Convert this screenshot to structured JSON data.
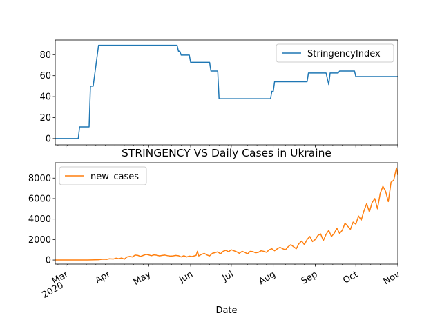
{
  "chart_data": [
    {
      "type": "line",
      "title": "",
      "xlabel": "",
      "ylabel": "",
      "ylim": [
        -6,
        94
      ],
      "xlim": [
        "2020-02-22",
        "2020-11-01"
      ],
      "yticks": [
        0,
        20,
        40,
        60,
        80
      ],
      "grid": false,
      "legend_position": "top-right",
      "series": [
        {
          "name": "StringencyIndex",
          "color": "#1f77b4",
          "points": [
            [
              "2020-02-22",
              0
            ],
            [
              "2020-03-10",
              0
            ],
            [
              "2020-03-11",
              11.1
            ],
            [
              "2020-03-18",
              11.1
            ],
            [
              "2020-03-19",
              50
            ],
            [
              "2020-03-21",
              50
            ],
            [
              "2020-03-25",
              89
            ],
            [
              "2020-05-22",
              89
            ],
            [
              "2020-05-23",
              83.3
            ],
            [
              "2020-05-24",
              83.3
            ],
            [
              "2020-05-25",
              79.6
            ],
            [
              "2020-05-31",
              79.6
            ],
            [
              "2020-06-01",
              72.7
            ],
            [
              "2020-06-15",
              72.7
            ],
            [
              "2020-06-16",
              64.4
            ],
            [
              "2020-06-21",
              64.4
            ],
            [
              "2020-06-22",
              38
            ],
            [
              "2020-07-30",
              38
            ],
            [
              "2020-07-31",
              45
            ],
            [
              "2020-08-01",
              45
            ],
            [
              "2020-08-02",
              54.2
            ],
            [
              "2020-08-26",
              54.2
            ],
            [
              "2020-08-27",
              62.5
            ],
            [
              "2020-09-09",
              62.5
            ],
            [
              "2020-09-11",
              51.5
            ],
            [
              "2020-09-12",
              62.5
            ],
            [
              "2020-09-18",
              62.5
            ],
            [
              "2020-09-19",
              64.4
            ],
            [
              "2020-09-30",
              64.4
            ],
            [
              "2020-10-01",
              59.1
            ],
            [
              "2020-11-01",
              59.1
            ]
          ]
        }
      ]
    },
    {
      "type": "line",
      "title": "STRINGENCY VS Daily Cases in Ukraine",
      "xlabel": "Date",
      "ylabel": "",
      "ylim": [
        -400,
        9500
      ],
      "xlim": [
        "2020-02-22",
        "2020-11-01"
      ],
      "yticks": [
        0,
        2000,
        4000,
        6000,
        8000
      ],
      "xticks": [
        {
          "date": "2020-03-01",
          "label": "Mar",
          "sublabel": "2020"
        },
        {
          "date": "2020-04-01",
          "label": "Apr"
        },
        {
          "date": "2020-05-01",
          "label": "May"
        },
        {
          "date": "2020-06-01",
          "label": "Jun"
        },
        {
          "date": "2020-07-01",
          "label": "Jul"
        },
        {
          "date": "2020-08-01",
          "label": "Aug"
        },
        {
          "date": "2020-09-01",
          "label": "Sep"
        },
        {
          "date": "2020-10-01",
          "label": "Oct"
        },
        {
          "date": "2020-11-01",
          "label": "Nov"
        }
      ],
      "grid": false,
      "legend_position": "top-left",
      "series": [
        {
          "name": "new_cases",
          "color": "#ff7f0e",
          "points": [
            [
              "2020-02-22",
              0
            ],
            [
              "2020-03-15",
              0
            ],
            [
              "2020-03-25",
              30
            ],
            [
              "2020-03-28",
              80
            ],
            [
              "2020-03-31",
              60
            ],
            [
              "2020-04-02",
              120
            ],
            [
              "2020-04-05",
              100
            ],
            [
              "2020-04-07",
              180
            ],
            [
              "2020-04-09",
              120
            ],
            [
              "2020-04-11",
              200
            ],
            [
              "2020-04-13",
              80
            ],
            [
              "2020-04-15",
              300
            ],
            [
              "2020-04-17",
              350
            ],
            [
              "2020-04-19",
              300
            ],
            [
              "2020-04-21",
              480
            ],
            [
              "2020-04-23",
              450
            ],
            [
              "2020-04-25",
              350
            ],
            [
              "2020-04-27",
              450
            ],
            [
              "2020-04-29",
              550
            ],
            [
              "2020-05-01",
              500
            ],
            [
              "2020-05-03",
              420
            ],
            [
              "2020-05-05",
              500
            ],
            [
              "2020-05-07",
              470
            ],
            [
              "2020-05-09",
              400
            ],
            [
              "2020-05-11",
              450
            ],
            [
              "2020-05-13",
              480
            ],
            [
              "2020-05-15",
              420
            ],
            [
              "2020-05-17",
              380
            ],
            [
              "2020-05-19",
              400
            ],
            [
              "2020-05-21",
              450
            ],
            [
              "2020-05-23",
              420
            ],
            [
              "2020-05-25",
              300
            ],
            [
              "2020-05-27",
              420
            ],
            [
              "2020-05-29",
              300
            ],
            [
              "2020-05-31",
              380
            ],
            [
              "2020-06-02",
              340
            ],
            [
              "2020-06-05",
              450
            ],
            [
              "2020-06-06",
              850
            ],
            [
              "2020-06-07",
              400
            ],
            [
              "2020-06-09",
              550
            ],
            [
              "2020-06-11",
              650
            ],
            [
              "2020-06-13",
              500
            ],
            [
              "2020-06-15",
              400
            ],
            [
              "2020-06-17",
              650
            ],
            [
              "2020-06-19",
              720
            ],
            [
              "2020-06-21",
              800
            ],
            [
              "2020-06-23",
              600
            ],
            [
              "2020-06-25",
              850
            ],
            [
              "2020-06-27",
              950
            ],
            [
              "2020-06-29",
              800
            ],
            [
              "2020-07-01",
              1000
            ],
            [
              "2020-07-03",
              900
            ],
            [
              "2020-07-05",
              800
            ],
            [
              "2020-07-07",
              650
            ],
            [
              "2020-07-09",
              850
            ],
            [
              "2020-07-11",
              750
            ],
            [
              "2020-07-13",
              600
            ],
            [
              "2020-07-15",
              850
            ],
            [
              "2020-07-17",
              820
            ],
            [
              "2020-07-19",
              700
            ],
            [
              "2020-07-21",
              750
            ],
            [
              "2020-07-23",
              900
            ],
            [
              "2020-07-25",
              850
            ],
            [
              "2020-07-27",
              750
            ],
            [
              "2020-07-29",
              1000
            ],
            [
              "2020-07-31",
              1100
            ],
            [
              "2020-08-02",
              900
            ],
            [
              "2020-08-04",
              1100
            ],
            [
              "2020-08-06",
              1250
            ],
            [
              "2020-08-08",
              1100
            ],
            [
              "2020-08-10",
              1000
            ],
            [
              "2020-08-12",
              1300
            ],
            [
              "2020-08-14",
              1500
            ],
            [
              "2020-08-16",
              1300
            ],
            [
              "2020-08-18",
              1100
            ],
            [
              "2020-08-20",
              1600
            ],
            [
              "2020-08-22",
              1850
            ],
            [
              "2020-08-24",
              1500
            ],
            [
              "2020-08-26",
              2000
            ],
            [
              "2020-08-28",
              2300
            ],
            [
              "2020-08-30",
              1800
            ],
            [
              "2020-09-01",
              2000
            ],
            [
              "2020-09-03",
              2400
            ],
            [
              "2020-09-05",
              2550
            ],
            [
              "2020-09-07",
              1900
            ],
            [
              "2020-09-09",
              2500
            ],
            [
              "2020-09-11",
              2900
            ],
            [
              "2020-09-13",
              2300
            ],
            [
              "2020-09-15",
              2600
            ],
            [
              "2020-09-17",
              3100
            ],
            [
              "2020-09-19",
              2600
            ],
            [
              "2020-09-21",
              2900
            ],
            [
              "2020-09-23",
              3600
            ],
            [
              "2020-09-25",
              3300
            ],
            [
              "2020-09-27",
              3000
            ],
            [
              "2020-09-29",
              3700
            ],
            [
              "2020-10-01",
              3500
            ],
            [
              "2020-10-03",
              4300
            ],
            [
              "2020-10-05",
              3900
            ],
            [
              "2020-10-07",
              4800
            ],
            [
              "2020-10-09",
              5500
            ],
            [
              "2020-10-11",
              4700
            ],
            [
              "2020-10-13",
              5600
            ],
            [
              "2020-10-15",
              6000
            ],
            [
              "2020-10-17",
              5000
            ],
            [
              "2020-10-19",
              6500
            ],
            [
              "2020-10-21",
              7200
            ],
            [
              "2020-10-23",
              6700
            ],
            [
              "2020-10-25",
              5700
            ],
            [
              "2020-10-27",
              7600
            ],
            [
              "2020-10-29",
              7800
            ],
            [
              "2020-10-31",
              9000
            ],
            [
              "2020-11-01",
              8300
            ]
          ]
        }
      ]
    }
  ]
}
